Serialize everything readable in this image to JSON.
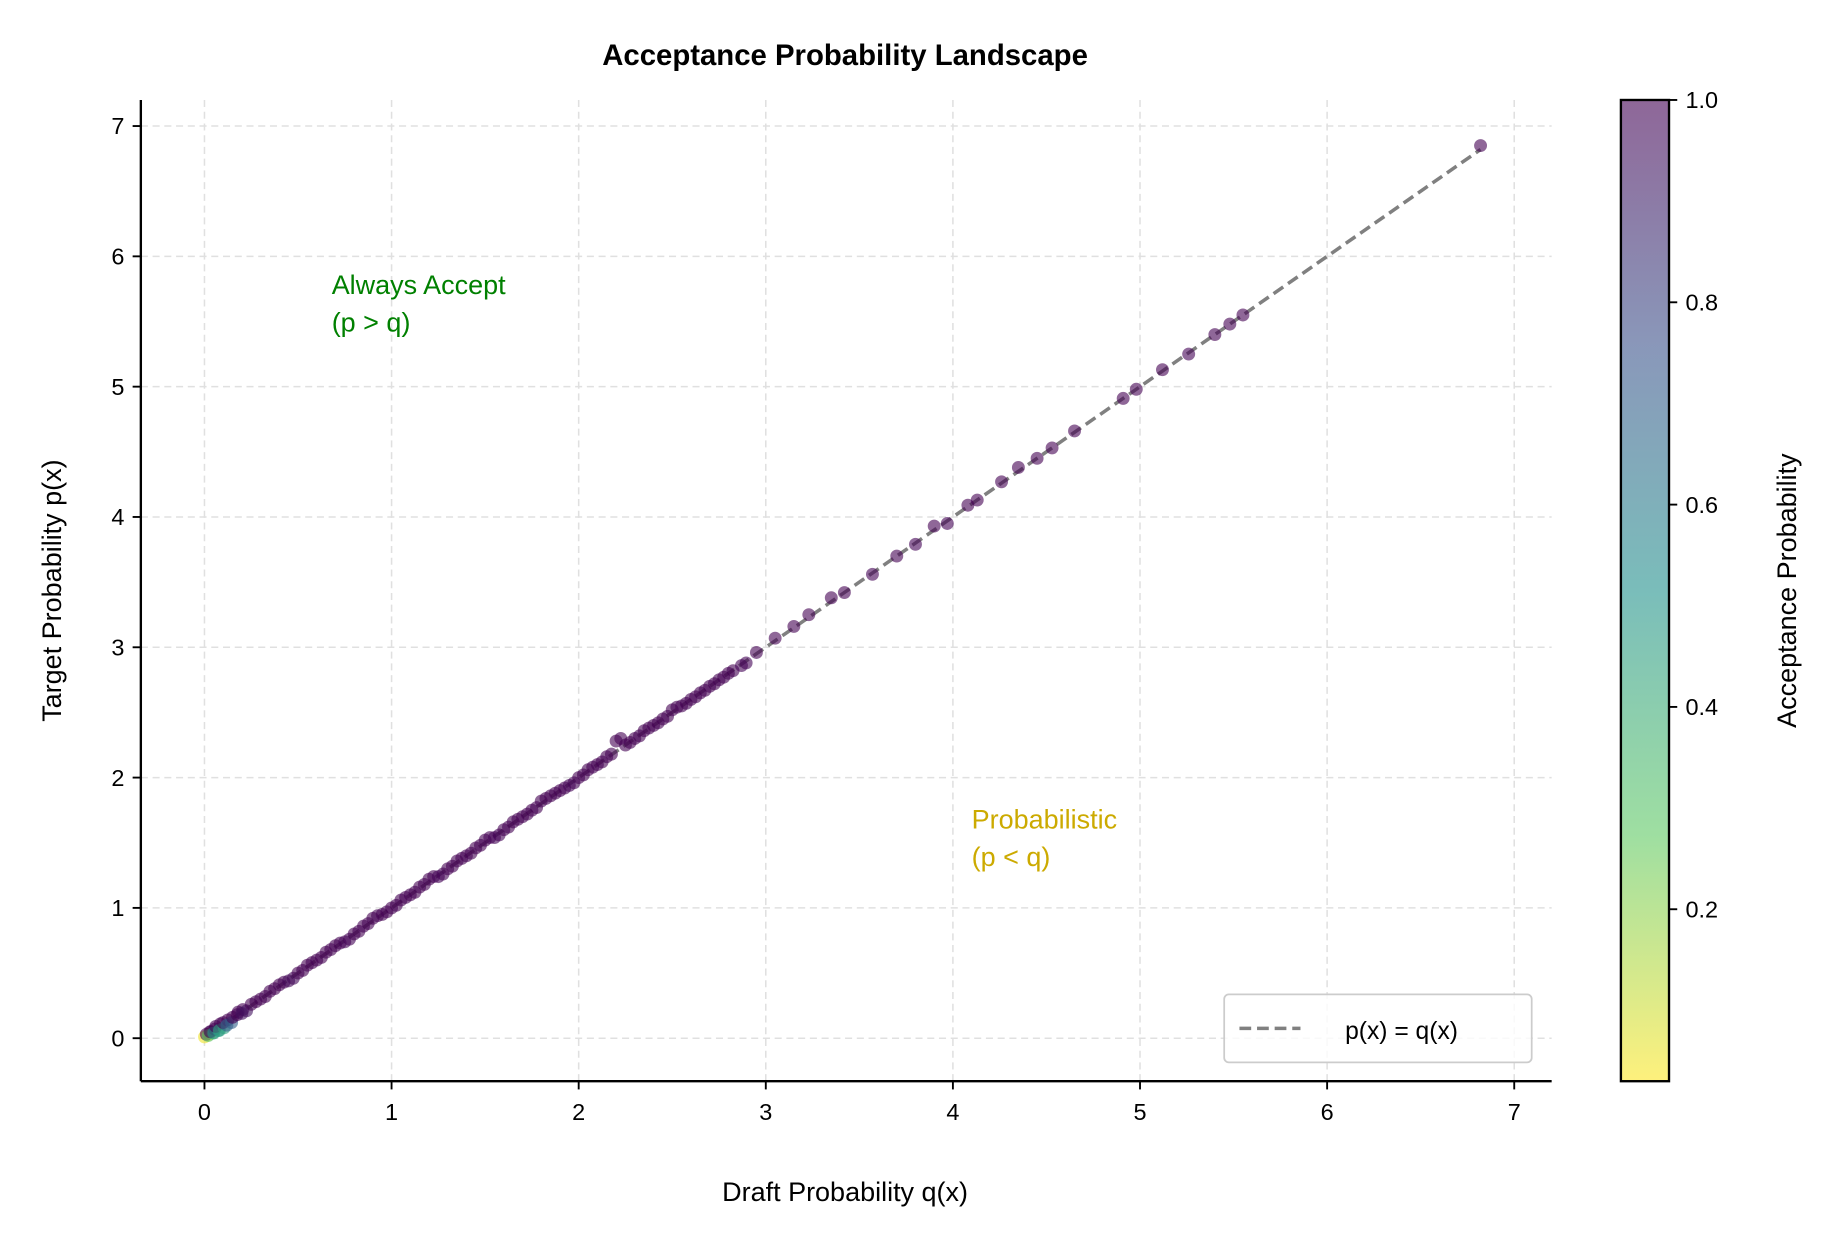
{
  "chart_data": {
    "type": "scatter",
    "title": "Acceptance Probability Landscape",
    "xlabel": "Draft Probability q(x)",
    "ylabel": "Target Probability p(x)",
    "xlim": [
      -0.34,
      7.2
    ],
    "ylim": [
      -0.33,
      7.2
    ],
    "xticks": [
      "0",
      "1",
      "2",
      "3",
      "4",
      "5",
      "6",
      "7"
    ],
    "yticks": [
      "0",
      "1",
      "2",
      "3",
      "4",
      "5",
      "6",
      "7"
    ],
    "grid": true,
    "grid_style": "dashed",
    "colormap": "viridis",
    "colorbar": {
      "label": "Acceptance Probability",
      "range": [
        0.03,
        1.0
      ],
      "ticks": [
        "0.2",
        "0.4",
        "0.6",
        "0.8",
        "1.0"
      ]
    },
    "legend": {
      "placement": "lower-right",
      "entries": [
        {
          "label": "p(x) = q(x)",
          "style": "dashed",
          "color": "#808080"
        }
      ]
    },
    "reference_line": {
      "from": [
        0,
        0
      ],
      "to": [
        6.82,
        6.82
      ]
    },
    "annotations": [
      {
        "text": [
          "Always Accept",
          "(p > q)"
        ],
        "x": 0.68,
        "y": 5.8,
        "color": "#008000"
      },
      {
        "text": [
          "Probabilistic",
          "(p < q)"
        ],
        "x": 4.1,
        "y": 1.7,
        "color": "#ccaa00"
      }
    ],
    "points": {
      "q": [
        0.0,
        0.01,
        0.02,
        0.03,
        0.05,
        0.06,
        0.08,
        0.1,
        0.12,
        0.15,
        0.18,
        0.2,
        0.25,
        0.3,
        0.35,
        0.4,
        0.45,
        0.5,
        0.55,
        0.6,
        0.65,
        0.7,
        0.75,
        0.8,
        0.85,
        0.9,
        0.95,
        1.0,
        1.05,
        1.1,
        1.15,
        1.2,
        1.25,
        1.3,
        1.35,
        1.4,
        1.45,
        1.5,
        1.55,
        1.6,
        1.65,
        1.7,
        1.75,
        1.8,
        1.85,
        1.9,
        1.95,
        2.0,
        2.05,
        2.1,
        2.15,
        2.2,
        2.25,
        2.3,
        2.35,
        2.4,
        2.45,
        2.5,
        2.55,
        2.6,
        2.65,
        2.7,
        2.75,
        2.8,
        2.87,
        2.95,
        3.05,
        3.15,
        3.23,
        3.35,
        3.42,
        3.57,
        3.7,
        3.8,
        3.9,
        3.97,
        4.08,
        4.13,
        4.26,
        4.35,
        4.45,
        4.53,
        4.65,
        4.91,
        4.98,
        5.12,
        5.26,
        5.4,
        5.48,
        5.55,
        6.82
      ],
      "p": [
        0.01,
        0.03,
        0.02,
        0.05,
        0.04,
        0.09,
        0.06,
        0.12,
        0.1,
        0.16,
        0.2,
        0.19,
        0.26,
        0.3,
        0.36,
        0.41,
        0.44,
        0.5,
        0.56,
        0.6,
        0.66,
        0.71,
        0.74,
        0.8,
        0.86,
        0.92,
        0.95,
        1.0,
        1.06,
        1.1,
        1.16,
        1.22,
        1.24,
        1.3,
        1.36,
        1.4,
        1.46,
        1.52,
        1.54,
        1.6,
        1.66,
        1.7,
        1.75,
        1.82,
        1.86,
        1.9,
        1.94,
        2.0,
        2.06,
        2.1,
        2.16,
        2.28,
        2.25,
        2.3,
        2.36,
        2.4,
        2.45,
        2.52,
        2.55,
        2.6,
        2.65,
        2.7,
        2.75,
        2.8,
        2.86,
        2.96,
        3.07,
        3.16,
        3.25,
        3.38,
        3.42,
        3.56,
        3.7,
        3.79,
        3.93,
        3.95,
        4.09,
        4.13,
        4.27,
        4.38,
        4.45,
        4.53,
        4.66,
        4.91,
        4.98,
        5.13,
        5.25,
        5.4,
        5.48,
        5.55,
        6.85
      ],
      "acceptance": [
        0.05,
        1.0,
        0.3,
        1.0,
        0.5,
        1.0,
        0.45,
        1.0,
        0.7,
        1.0,
        1.0,
        0.95,
        1.0,
        1.0,
        1.0,
        1.0,
        0.98,
        1.0,
        1.0,
        1.0,
        1.0,
        1.0,
        0.99,
        1.0,
        1.0,
        1.0,
        1.0,
        1.0,
        1.0,
        1.0,
        1.0,
        1.0,
        0.99,
        1.0,
        1.0,
        1.0,
        1.0,
        1.0,
        0.99,
        1.0,
        1.0,
        1.0,
        1.0,
        1.0,
        1.0,
        1.0,
        0.99,
        1.0,
        1.0,
        1.0,
        1.0,
        1.0,
        1.0,
        1.0,
        1.0,
        1.0,
        1.0,
        1.0,
        1.0,
        1.0,
        1.0,
        1.0,
        1.0,
        1.0,
        0.99,
        1.0,
        1.0,
        1.0,
        1.0,
        1.0,
        1.0,
        0.99,
        1.0,
        0.99,
        1.0,
        0.99,
        1.0,
        1.0,
        1.0,
        1.0,
        1.0,
        1.0,
        1.0,
        1.0,
        1.0,
        1.0,
        0.99,
        1.0,
        1.0,
        1.0,
        1.0
      ]
    }
  }
}
